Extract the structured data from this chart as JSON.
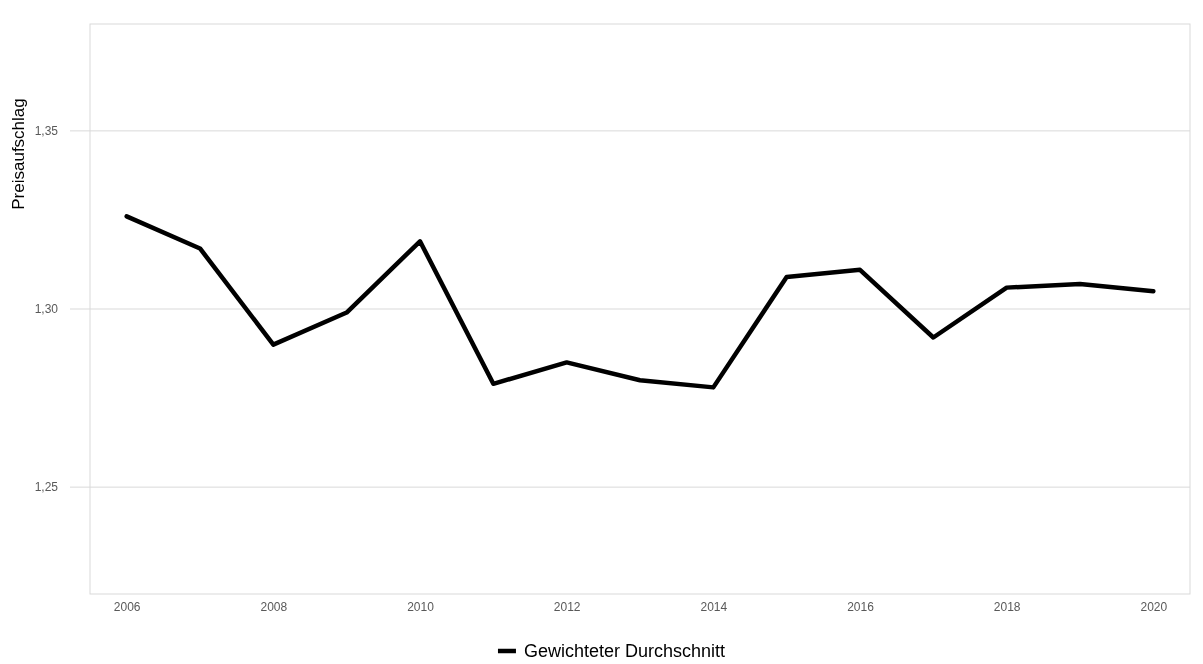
{
  "chart_data": {
    "type": "line",
    "ylabel": "Preisaufschlag",
    "x": [
      2006,
      2007,
      2008,
      2009,
      2010,
      2011,
      2012,
      2013,
      2014,
      2015,
      2016,
      2017,
      2018,
      2019,
      2020
    ],
    "series": [
      {
        "name": "Gewichteter Durchschnitt",
        "color": "#000000",
        "values": [
          1.326,
          1.317,
          1.29,
          1.299,
          1.319,
          1.279,
          1.285,
          1.28,
          1.278,
          1.309,
          1.311,
          1.292,
          1.306,
          1.307,
          1.305
        ]
      }
    ],
    "xlim": [
      2005.5,
      2020.5
    ],
    "xticks": [
      2006,
      2008,
      2010,
      2012,
      2014,
      2016,
      2018,
      2020
    ],
    "ylim": [
      1.22,
      1.38
    ],
    "yticks": [
      {
        "value": 1.25,
        "label": "1,25"
      },
      {
        "value": 1.3,
        "label": "1,30"
      },
      {
        "value": 1.35,
        "label": "1,35"
      }
    ],
    "grid": "y",
    "legend": "bottom",
    "line_style": "solid",
    "marker": "none"
  }
}
